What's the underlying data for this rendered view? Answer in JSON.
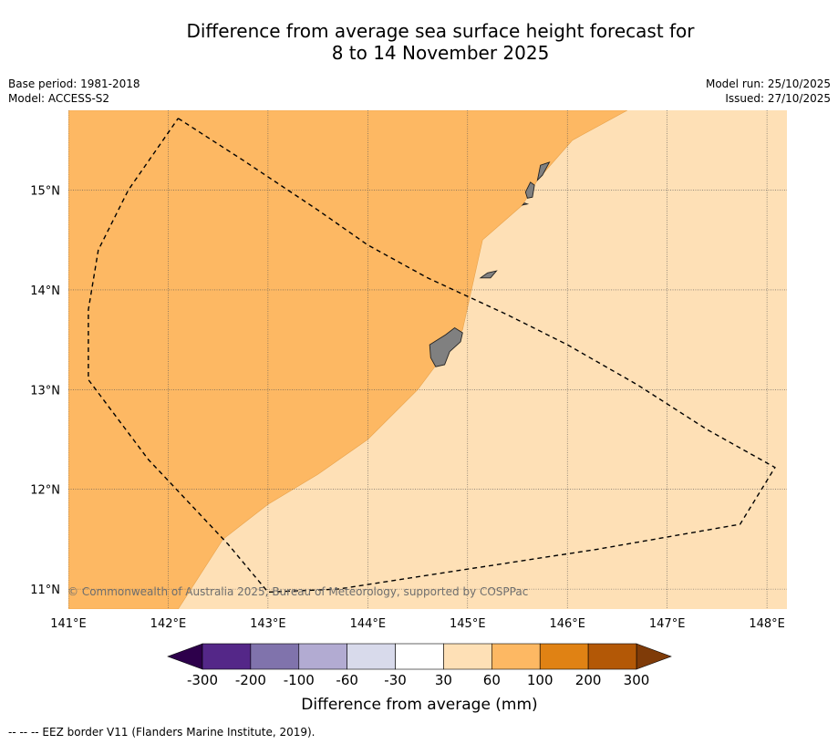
{
  "title": {
    "line1": "Difference from average sea surface height forecast for",
    "line2": "8 to 14 November 2025"
  },
  "meta_left": {
    "base_period": "Base period: 1981-2018",
    "model": "Model: ACCESS-S2"
  },
  "meta_right": {
    "model_run": "Model run: 25/10/2025",
    "issued": "Issued: 27/10/2025"
  },
  "map": {
    "lon_range": [
      141,
      148.2
    ],
    "lat_range": [
      10.8,
      15.8
    ],
    "lon_ticks": [
      {
        "value": 141,
        "label": "141°E"
      },
      {
        "value": 142,
        "label": "142°E"
      },
      {
        "value": 143,
        "label": "143°E"
      },
      {
        "value": 144,
        "label": "144°E"
      },
      {
        "value": 145,
        "label": "145°E"
      },
      {
        "value": 146,
        "label": "146°E"
      },
      {
        "value": 147,
        "label": "147°E"
      },
      {
        "value": 148,
        "label": "148°E"
      }
    ],
    "lat_ticks": [
      {
        "value": 15,
        "label": "15°N"
      },
      {
        "value": 14,
        "label": "14°N"
      },
      {
        "value": 13,
        "label": "13°N"
      },
      {
        "value": 12,
        "label": "12°N"
      },
      {
        "value": 11,
        "label": "11°N"
      }
    ],
    "copyright": "© Commonwealth of Australia 2025, Bureau of Meteorology, supported by COSPPac",
    "background_band": "30 to 60",
    "regions": [
      {
        "band": "60 to 100",
        "boundary_lonlat": [
          [
            146.6,
            15.8
          ],
          [
            146.05,
            15.5
          ],
          [
            145.7,
            15.1
          ],
          [
            145.55,
            14.85
          ],
          [
            145.15,
            14.5
          ],
          [
            144.95,
            13.6
          ],
          [
            144.5,
            13.0
          ],
          [
            144.0,
            12.5
          ],
          [
            143.5,
            12.15
          ],
          [
            143.0,
            11.85
          ],
          [
            142.55,
            11.5
          ],
          [
            142.1,
            10.8
          ],
          [
            141.0,
            10.8
          ],
          [
            141.0,
            15.8
          ]
        ]
      }
    ],
    "islands": [
      {
        "name": "Guam",
        "outline_lonlat": [
          [
            144.62,
            13.45
          ],
          [
            144.78,
            13.55
          ],
          [
            144.87,
            13.62
          ],
          [
            144.95,
            13.57
          ],
          [
            144.93,
            13.48
          ],
          [
            144.82,
            13.38
          ],
          [
            144.77,
            13.25
          ],
          [
            144.68,
            13.23
          ],
          [
            144.63,
            13.32
          ]
        ]
      },
      {
        "name": "Rota",
        "outline_lonlat": [
          [
            145.13,
            14.12
          ],
          [
            145.2,
            14.17
          ],
          [
            145.29,
            14.19
          ],
          [
            145.23,
            14.12
          ]
        ]
      },
      {
        "name": "Tinian",
        "outline_lonlat": [
          [
            145.58,
            14.98
          ],
          [
            145.63,
            15.08
          ],
          [
            145.67,
            15.05
          ],
          [
            145.65,
            14.93
          ],
          [
            145.6,
            14.92
          ]
        ]
      },
      {
        "name": "Saipan",
        "outline_lonlat": [
          [
            145.7,
            15.1
          ],
          [
            145.73,
            15.25
          ],
          [
            145.82,
            15.28
          ],
          [
            145.75,
            15.15
          ]
        ]
      },
      {
        "name": "Aguijan",
        "outline_lonlat": [
          [
            145.55,
            14.85
          ],
          [
            145.57,
            14.87
          ],
          [
            145.6,
            14.86
          ]
        ]
      }
    ],
    "eez_border_lonlat": [
      [
        142.1,
        15.72
      ],
      [
        142.75,
        15.3
      ],
      [
        143.5,
        14.8
      ],
      [
        144.0,
        14.45
      ],
      [
        144.6,
        14.12
      ],
      [
        145.4,
        13.75
      ],
      [
        146.0,
        13.45
      ],
      [
        146.7,
        13.05
      ],
      [
        147.4,
        12.6
      ],
      [
        148.08,
        12.22
      ],
      [
        147.73,
        11.65
      ],
      [
        146.3,
        11.4
      ],
      [
        145.0,
        11.2
      ],
      [
        143.7,
        11.0
      ],
      [
        143.0,
        10.97
      ],
      [
        142.6,
        11.45
      ],
      [
        141.8,
        12.3
      ],
      [
        141.2,
        13.1
      ],
      [
        141.2,
        13.8
      ],
      [
        141.3,
        14.4
      ],
      [
        141.6,
        15.0
      ],
      [
        142.1,
        15.72
      ]
    ]
  },
  "colorbar": {
    "title": "Difference from average (mm)",
    "low_extend_color": "#2d004b",
    "high_extend_color": "#7f3b08",
    "bins": [
      {
        "range": "-300 to -200",
        "color": "#542788"
      },
      {
        "range": "-200 to -100",
        "color": "#8073ac"
      },
      {
        "range": "-100 to -60",
        "color": "#b2abd2"
      },
      {
        "range": "-60 to -30",
        "color": "#d8daeb"
      },
      {
        "range": "-30 to 30",
        "color": "#ffffff"
      },
      {
        "range": "30 to 60",
        "color": "#fee0b6"
      },
      {
        "range": "60 to 100",
        "color": "#fdb863"
      },
      {
        "range": "100 to 200",
        "color": "#e08214"
      },
      {
        "range": "200 to 300",
        "color": "#b35806"
      }
    ],
    "tick_labels": [
      "-300",
      "-200",
      "-100",
      "-60",
      "-30",
      "30",
      "60",
      "100",
      "200",
      "300"
    ]
  },
  "footer": {
    "eez_legend": "--  --  -- EEZ border V11 (Flanders Marine Institute, 2019)."
  },
  "colors": {
    "background_fill": "#fee0b6",
    "region_fill": "#fdb863",
    "land_fill": "#808080"
  }
}
